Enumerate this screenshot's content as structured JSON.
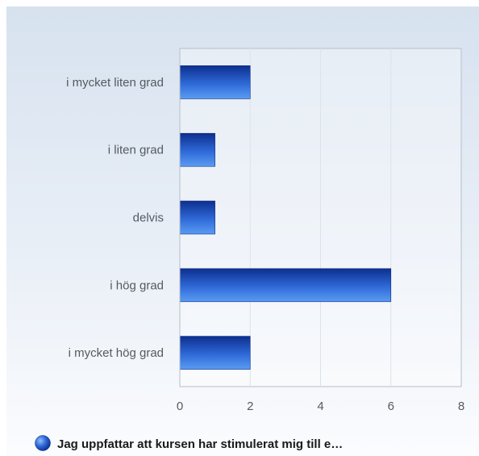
{
  "chart_data": {
    "type": "bar",
    "orientation": "horizontal",
    "categories": [
      "i mycket liten grad",
      "i liten grad",
      "delvis",
      "i hög grad",
      "i mycket hög grad"
    ],
    "series": [
      {
        "name": "Jag uppfattar att kursen har stimulerat mig till e…",
        "values": [
          2,
          1,
          1,
          6,
          2
        ]
      }
    ],
    "xlim": [
      0,
      8
    ],
    "xticks": [
      "0",
      "2",
      "4",
      "6",
      "8"
    ],
    "grid": true,
    "legend_position": "bottom-left",
    "colors": {
      "bar_dark": "#0d2f8f",
      "bar_light": "#5a9cf2",
      "axis": "#b9bfc7",
      "grid": "#dde3ea"
    }
  }
}
